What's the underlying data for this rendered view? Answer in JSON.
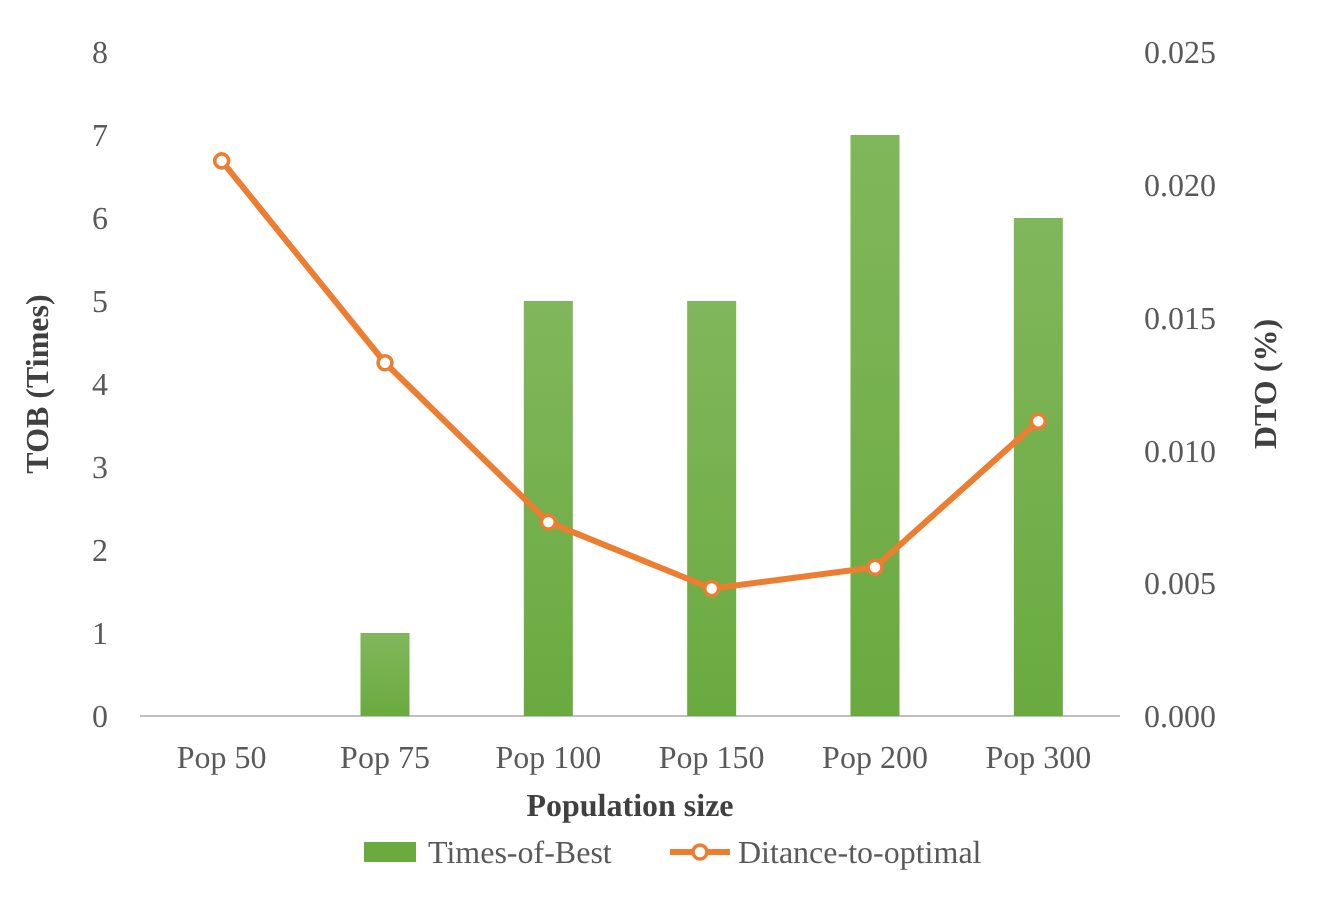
{
  "chart_data": {
    "type": "bar",
    "xlabel": "Population size",
    "ylabel": "TOB (Times)",
    "y2label": "DTO (%)",
    "categories": [
      "Pop 50",
      "Pop 75",
      "Pop 100",
      "Pop 150",
      "Pop 200",
      "Pop 300"
    ],
    "series": [
      {
        "name": "Times-of-Best",
        "color": "#6aaa3f",
        "values": [
          0,
          1,
          5,
          5,
          7,
          6
        ]
      },
      {
        "name": "Ditance-to-optimal",
        "type": "line",
        "axis": "y2",
        "color": "#ed7d31",
        "marker": "circle",
        "values": [
          0.0209,
          0.0133,
          0.0073,
          0.0048,
          0.0056,
          0.0111
        ]
      }
    ],
    "ylim": [
      0,
      8
    ],
    "yticks": [
      0,
      1,
      2,
      3,
      4,
      5,
      6,
      7,
      8
    ],
    "y2lim": [
      0,
      0.025
    ],
    "y2ticks": [
      {
        "value": 0,
        "label": "0.000"
      },
      {
        "value": 0.005,
        "label": "0.005"
      },
      {
        "value": 0.01,
        "label": "0.010"
      },
      {
        "value": 0.015,
        "label": "0.015"
      },
      {
        "value": 0.02,
        "label": "0.020"
      },
      {
        "value": 0.025,
        "label": "0.025"
      }
    ],
    "legend": "bottom",
    "grid": false
  }
}
